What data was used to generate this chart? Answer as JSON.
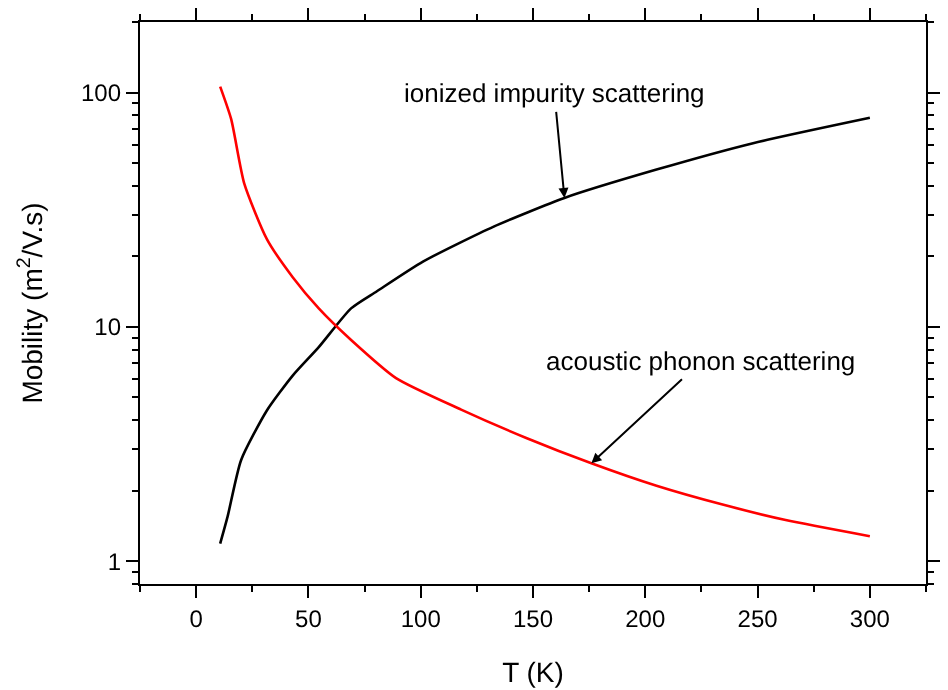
{
  "chart_data": {
    "type": "line",
    "xlabel": "T (K)",
    "ylabel": "Mobility (m$^{2}$/V.s)",
    "log": "y",
    "xlim": [
      -25,
      325
    ],
    "ylim": [
      0.8,
      200
    ],
    "xticks": [
      {
        "value": -25,
        "label": null
      },
      0,
      {
        "value": 25,
        "label": null
      },
      50,
      {
        "value": 75,
        "label": null
      },
      100,
      {
        "value": 125,
        "label": null
      },
      150,
      {
        "value": 175,
        "label": null
      },
      200,
      {
        "value": 225,
        "label": null
      },
      250,
      {
        "value": 275,
        "label": null
      },
      300,
      {
        "value": 325,
        "label": null
      }
    ],
    "yticks": [
      {
        "value": 0.8,
        "label": null
      },
      {
        "value": 0.9,
        "label": null
      },
      1,
      {
        "value": 2,
        "label": null
      },
      {
        "value": 3,
        "label": null
      },
      {
        "value": 4,
        "label": null
      },
      {
        "value": 5,
        "label": null
      },
      {
        "value": 6,
        "label": null
      },
      {
        "value": 7,
        "label": null
      },
      {
        "value": 8,
        "label": null
      },
      {
        "value": 9,
        "label": null
      },
      10,
      {
        "value": 20,
        "label": null
      },
      {
        "value": 30,
        "label": null
      },
      {
        "value": 40,
        "label": null
      },
      {
        "value": 50,
        "label": null
      },
      {
        "value": 60,
        "label": null
      },
      {
        "value": 70,
        "label": null
      },
      {
        "value": 80,
        "label": null
      },
      {
        "value": 90,
        "label": null
      },
      100,
      {
        "value": 200,
        "label": null
      }
    ],
    "marker": "none",
    "line_style": "solid",
    "series": [
      {
        "color": "#000000",
        "x": [
          10.7,
          14,
          20,
          31.5,
          43,
          54.6,
          69,
          80.5,
          101,
          132.5,
          164,
          205,
          248,
          300
        ],
        "values": [
          1.19,
          1.55,
          2.7,
          4.4,
          6.2,
          8.2,
          12,
          14.2,
          19,
          26.8,
          35.5,
          46.9,
          60.8,
          78
        ]
      },
      {
        "color": "#ff0000",
        "x": [
          10.7,
          15.6,
          21.4,
          31.5,
          43,
          54.6,
          69,
          89,
          118,
          147,
          176,
          205,
          234,
          262.5,
          300
        ],
        "values": [
          106,
          77,
          41,
          23.7,
          16.3,
          12,
          8.8,
          6.05,
          4.44,
          3.36,
          2.62,
          2.1,
          1.75,
          1.5,
          1.28
        ]
      }
    ],
    "annotations": [
      {
        "text": "ionized impurity scattering",
        "x": 164,
        "y": 35.5
      },
      {
        "text": "acoustic phonon scattering",
        "x": 176,
        "y": 2.62
      }
    ]
  }
}
